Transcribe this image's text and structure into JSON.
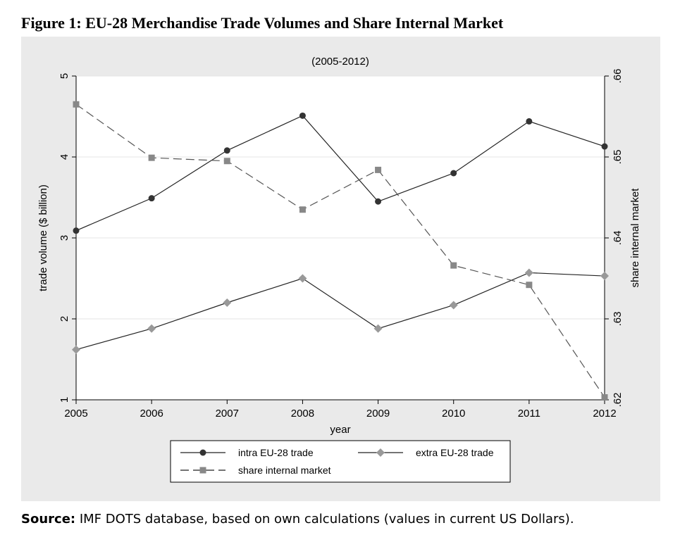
{
  "figure": {
    "title": "Figure 1: EU-28 Merchandise Trade Volumes and Share Internal Market",
    "source_label": "Source:",
    "source_text": " IMF DOTS database, based on own calculations (values in current US Dollars)."
  },
  "chart_data": {
    "type": "line",
    "title": "(2005-2012)",
    "xlabel": "year",
    "ylabel": "trade volume ($ billion)",
    "y2label": "share internal market",
    "x": [
      2005,
      2006,
      2007,
      2008,
      2009,
      2010,
      2011,
      2012
    ],
    "x_tick_labels": [
      "2005",
      "2006",
      "2007",
      "2008",
      "2009",
      "2010",
      "2011",
      "2012"
    ],
    "ylim": [
      1,
      5
    ],
    "y_ticks": [
      1,
      2,
      3,
      4,
      5
    ],
    "y_tick_labels": [
      "1",
      "2",
      "3",
      "4",
      "5"
    ],
    "y2lim": [
      0.62,
      0.66
    ],
    "y2_ticks": [
      0.62,
      0.63,
      0.64,
      0.65,
      0.66
    ],
    "y2_tick_labels": [
      ".62",
      ".63",
      ".64",
      ".65",
      ".66"
    ],
    "grid": true,
    "legend_position": "bottom",
    "series": [
      {
        "name": "intra EU-28 trade",
        "axis": "left",
        "marker": "circle",
        "style": "solid",
        "color": "#333333",
        "values": [
          3.09,
          3.49,
          4.08,
          4.51,
          3.45,
          3.8,
          4.44,
          4.13
        ]
      },
      {
        "name": "extra EU-28 trade",
        "axis": "left",
        "marker": "diamond",
        "style": "solid",
        "color": "#999999",
        "values": [
          1.62,
          1.88,
          2.2,
          2.5,
          1.88,
          2.17,
          2.57,
          2.53
        ]
      },
      {
        "name": "share internal market",
        "axis": "right",
        "marker": "square",
        "style": "dashed",
        "color": "#888888",
        "values": [
          0.6565,
          0.6499,
          0.6495,
          0.6435,
          0.6484,
          0.6366,
          0.6342,
          0.6203
        ]
      }
    ]
  }
}
